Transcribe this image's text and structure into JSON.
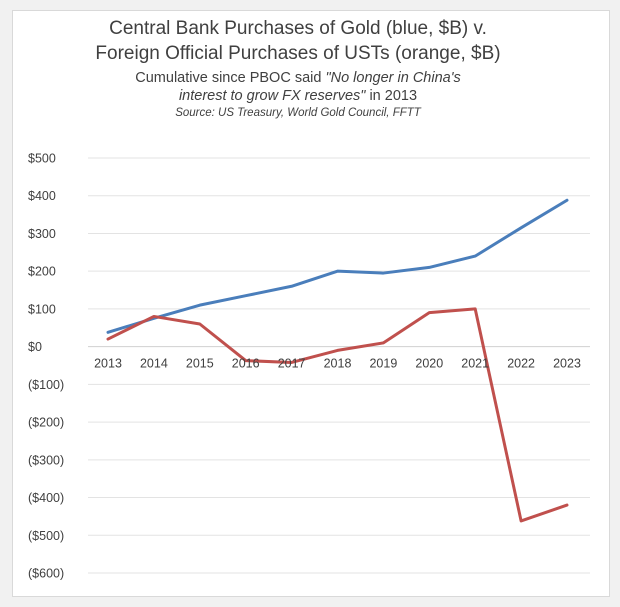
{
  "chart_data": {
    "type": "line",
    "title_line1": "Central Bank Purchases of Gold (blue, $B) v.",
    "title_line2": "Foreign Official Purchases of USTs (orange, $B)",
    "subtitle_line1_plain": "Cumulative since PBOC said ",
    "subtitle_line1_italic": "\"No longer in China's",
    "subtitle_line2_italic": "interest to grow FX reserves\"",
    "subtitle_line2_plain": " in 2013",
    "source": "Source: US Treasury, World Gold Council, FFTT",
    "x": [
      "2013",
      "2014",
      "2015",
      "2016",
      "2017",
      "2018",
      "2019",
      "2020",
      "2021",
      "2022",
      "2023"
    ],
    "series": [
      {
        "color": "#4a7ebb",
        "values": [
          38,
          75,
          110,
          135,
          160,
          200,
          195,
          210,
          240,
          315,
          388
        ]
      },
      {
        "color": "#c0504d",
        "values": [
          20,
          80,
          60,
          -37,
          -42,
          -10,
          10,
          90,
          100,
          -462,
          -420
        ]
      }
    ],
    "y_ticks": [
      500,
      400,
      300,
      200,
      100,
      0,
      -100,
      -200,
      -300,
      -400,
      -500,
      -600
    ],
    "y_tick_labels": [
      "$500",
      "$400",
      "$300",
      "$200",
      "$100",
      "$0",
      "($100)",
      "($200)",
      "($300)",
      "($400)",
      "($500)",
      "($600)"
    ],
    "ylim": [
      -600,
      500
    ],
    "grid": true,
    "legend": "none"
  }
}
